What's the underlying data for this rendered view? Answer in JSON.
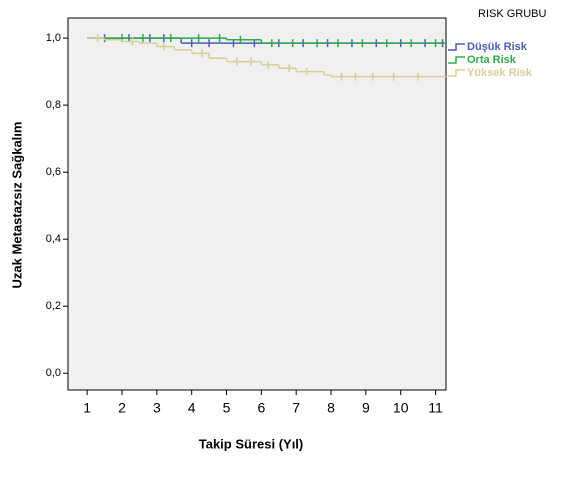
{
  "chart_data": {
    "type": "step",
    "xlabel": "Takip Süresi (Yıl)",
    "ylabel": "Uzak Metastazsız Sağkalım",
    "legend_title": "RISK GRUBU",
    "legend_position": "right",
    "xlim": [
      0.45,
      11.3
    ],
    "ylim": [
      -0.05,
      1.06
    ],
    "xticks": [
      1,
      2,
      3,
      4,
      5,
      6,
      7,
      8,
      9,
      10,
      11
    ],
    "yticks": [
      {
        "value": 0,
        "label": "0,0"
      },
      {
        "value": 0.2,
        "label": "0,2"
      },
      {
        "value": 0.4,
        "label": "0,4"
      },
      {
        "value": 0.6,
        "label": "0,6"
      },
      {
        "value": 0.8,
        "label": "0,8"
      },
      {
        "value": 1,
        "label": "1,0"
      }
    ],
    "series": [
      {
        "name": "Düşük Risk",
        "color": "#4a5fae",
        "x": [
          1,
          3.7,
          11.3
        ],
        "values": [
          1,
          0.985,
          0.985
        ],
        "censored": [
          1.5,
          2.2,
          2.8,
          3.2,
          4.0,
          4.5,
          5.2,
          5.8,
          6.5,
          7.2,
          7.9,
          8.6,
          9.3,
          10.0,
          10.7,
          11.2
        ]
      },
      {
        "name": "Orta Risk",
        "color": "#2fa84f",
        "x": [
          1,
          5,
          6,
          11.3
        ],
        "values": [
          1,
          0.995,
          0.985,
          0.985
        ],
        "censored": [
          2.0,
          2.6,
          3.4,
          4.2,
          4.8,
          5.4,
          6.3,
          6.9,
          7.6,
          8.2,
          8.9,
          9.6,
          10.3,
          11.0
        ]
      },
      {
        "name": "Yüksek Risk",
        "color": "#d6cf9a",
        "x": [
          1,
          1.5,
          2,
          2.5,
          3,
          3.5,
          4,
          4.5,
          5,
          6,
          6.5,
          7,
          7.8,
          8,
          11.3
        ],
        "values": [
          1,
          0.995,
          0.99,
          0.985,
          0.975,
          0.965,
          0.955,
          0.94,
          0.93,
          0.92,
          0.91,
          0.9,
          0.89,
          0.885,
          0.885
        ],
        "censored": [
          1.3,
          2.3,
          3.2,
          4.3,
          5.3,
          5.7,
          6.2,
          6.8,
          7.3,
          8.3,
          8.7,
          9.2,
          9.8,
          10.5
        ]
      }
    ]
  }
}
